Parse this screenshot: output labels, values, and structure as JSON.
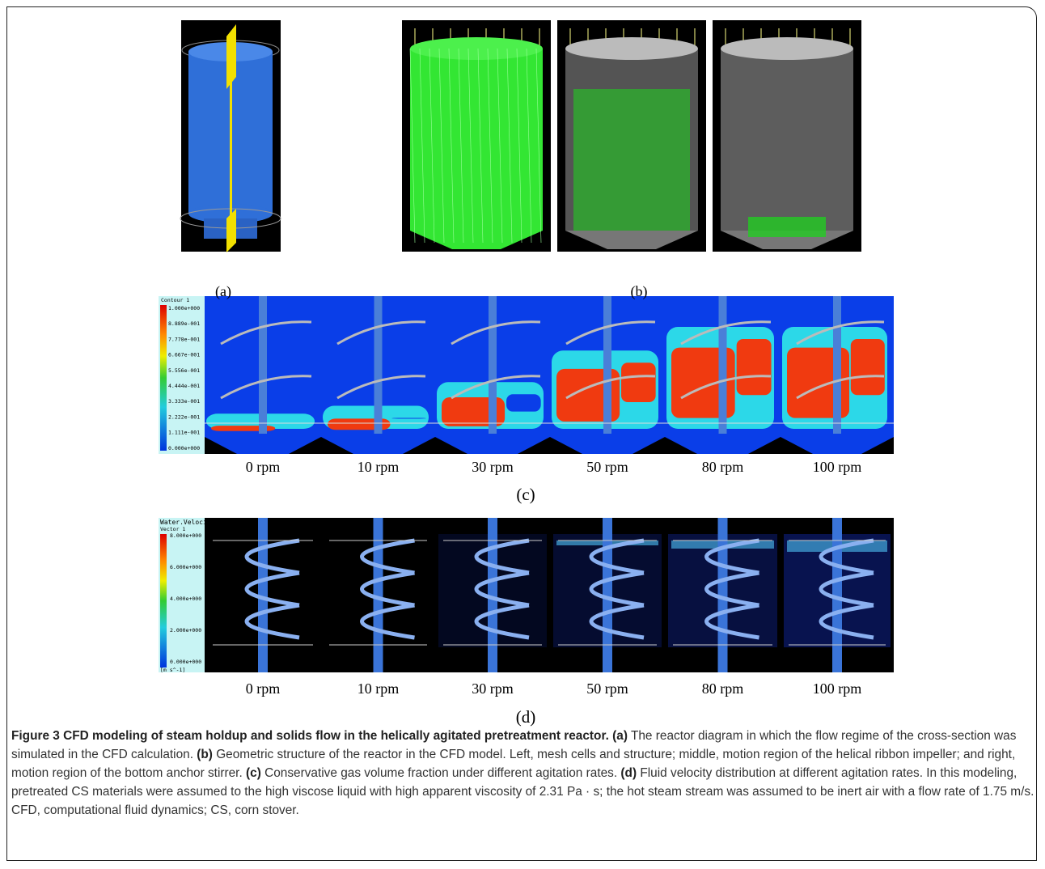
{
  "panels": {
    "a": {
      "label": "(a)"
    },
    "b": {
      "label": "(b)"
    },
    "c": {
      "label": "(c)",
      "legend_title": "Contour 1",
      "legend_ticks": [
        "1.000e+000",
        "8.889e-001",
        "7.778e-001",
        "6.667e-001",
        "5.556e-001",
        "4.444e-001",
        "3.333e-001",
        "2.222e-001",
        "1.111e-001",
        "0.000e+000"
      ],
      "rpm": [
        "0 rpm",
        "10 rpm",
        "30 rpm",
        "50 rpm",
        "80 rpm",
        "100 rpm"
      ]
    },
    "d": {
      "label": "(d)",
      "legend_title": "Water.Velocity",
      "legend_subtitle": "Vector 1",
      "legend_ticks": [
        "8.000e+000",
        "6.000e+000",
        "4.000e+000",
        "2.000e+000",
        "0.000e+000"
      ],
      "legend_unit": "[m s^-1]",
      "rpm": [
        "0 rpm",
        "10 rpm",
        "30 rpm",
        "50 rpm",
        "80 rpm",
        "100 rpm"
      ]
    }
  },
  "caption": {
    "title": "Figure 3 CFD modeling of steam holdup and solids flow in the helically agitated pretreatment reactor.",
    "items": [
      {
        "label": "(a)",
        "text": "The reactor diagram in which the flow regime of the cross-section was simulated in the CFD calculation."
      },
      {
        "label": "(b)",
        "text": "Geometric structure of the reactor in the CFD model. Left, mesh cells and structure; middle, motion region of the helical ribbon impeller; and right, motion region of the bottom anchor stirrer."
      },
      {
        "label": "(c)",
        "text": "Conservative gas volume fraction under different agitation rates."
      },
      {
        "label": "(d)",
        "text": "Fluid velocity distribution at different agitation rates. In this modeling, pretreated CS materials were assumed to the high viscose liquid with high apparent viscosity of 2.31 Pa · s; the hot steam stream was assumed to be inert air with a flow rate of 1.75 m/s. CFD, computational fluid dynamics; CS, corn stover."
      }
    ]
  }
}
